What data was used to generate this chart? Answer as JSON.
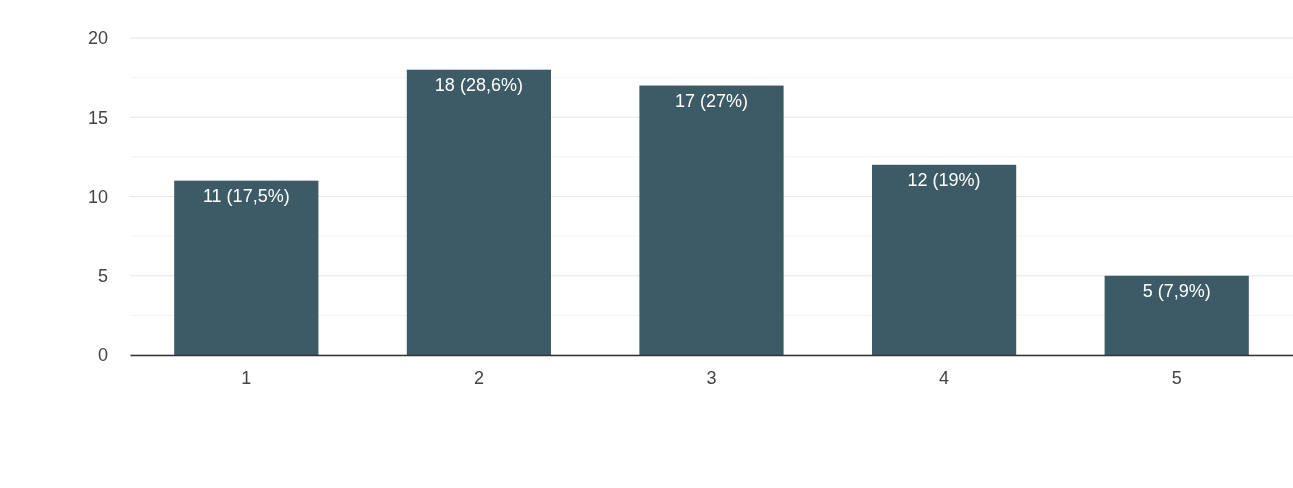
{
  "chart_data": {
    "type": "bar",
    "categories": [
      "1",
      "2",
      "3",
      "4",
      "5"
    ],
    "values": [
      11,
      18,
      17,
      12,
      5
    ],
    "color": "#3d5b66",
    "value_labels": [
      "11 (17,5%)",
      "18 (28,6%)",
      "17 (27%)",
      "12 (19%)",
      "5 (7,9%)"
    ],
    "ylim": [
      0,
      20
    ],
    "yticks": [
      0,
      {
        "value": 2.5,
        "label": null
      },
      5,
      {
        "value": 7.5,
        "label": null
      },
      10,
      {
        "value": 12.5,
        "label": null
      },
      15,
      {
        "value": 17.5,
        "label": null
      },
      20
    ],
    "grid": "y"
  }
}
